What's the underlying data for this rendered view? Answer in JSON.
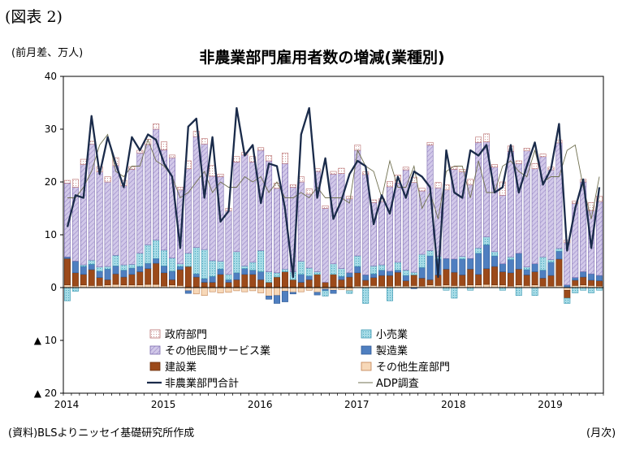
{
  "figure_label": "(図表 2)",
  "unit_label": "(前月差、万人)",
  "source_note": "(資料)BLSよりニッセイ基礎研究所作成",
  "x_unit": "(月次)",
  "colors": {
    "government": "#b86b6b",
    "retail": "#7cc6d6",
    "other_private_services": "#bdb0da",
    "manufacturing": "#4f7fc0",
    "construction": "#9c4a1a",
    "other_goods": "#f4cda6",
    "nonfarm_total": "#1a2b4a",
    "adp": "#707050"
  },
  "chart_data": {
    "type": "bar",
    "stacked": true,
    "title": "非農業部門雇用者数の増減(業種別)",
    "ylim": [
      -20,
      40
    ],
    "yticks": [
      {
        "v": 40,
        "label": "40"
      },
      {
        "v": 30,
        "label": "30"
      },
      {
        "v": 20,
        "label": "20"
      },
      {
        "v": 10,
        "label": "10"
      },
      {
        "v": 0,
        "label": "0"
      },
      {
        "v": -10,
        "label": "▲ 10"
      },
      {
        "v": -20,
        "label": "▲ 20"
      }
    ],
    "year_labels": [
      "2014",
      "2015",
      "2016",
      "2017",
      "2018",
      "2019"
    ],
    "start": "2014-01",
    "months": 67,
    "legend": [
      {
        "key": "government",
        "label": "政府部門",
        "kind": "bar"
      },
      {
        "key": "retail",
        "label": "小売業",
        "kind": "bar"
      },
      {
        "key": "other_private_services",
        "label": "その他民間サービス業",
        "kind": "bar"
      },
      {
        "key": "manufacturing",
        "label": "製造業",
        "kind": "bar"
      },
      {
        "key": "construction",
        "label": "建設業",
        "kind": "bar"
      },
      {
        "key": "other_goods",
        "label": "その他生産部門",
        "kind": "bar"
      },
      {
        "key": "nonfarm_total",
        "label": "非農業部門合計",
        "kind": "line"
      },
      {
        "key": "adp",
        "label": "ADP調査",
        "kind": "line"
      }
    ],
    "series": {
      "other_goods": [
        0.5,
        0.3,
        0.5,
        0.4,
        0.4,
        0.5,
        0.6,
        0.5,
        0.5,
        0.5,
        0.6,
        0.6,
        0.3,
        0.5,
        0.4,
        -0.6,
        -1.2,
        -1.5,
        -0.8,
        -1.0,
        -0.9,
        -0.6,
        -0.8,
        -0.6,
        -1.0,
        -1.6,
        -1.5,
        -0.7,
        -0.9,
        -0.8,
        -0.5,
        -0.9,
        -0.3,
        -0.5,
        -0.4,
        -0.6,
        0.3,
        0.4,
        0.4,
        0.3,
        0.3,
        0.4,
        0.3,
        0.4,
        0.3,
        0.5,
        0.4,
        0.5,
        0.4,
        0.4,
        0.5,
        0.5,
        0.6,
        0.5,
        0.5,
        0.3,
        0.5,
        0.4,
        0.5,
        0.3,
        0.3,
        0.4,
        -0.5,
        0.4,
        0.5,
        0.4,
        0.3
      ],
      "construction": [
        5.0,
        2.5,
        2.0,
        3.0,
        1.5,
        1.0,
        2.0,
        1.5,
        2.0,
        2.5,
        3.0,
        4.0,
        2.5,
        1.0,
        3.0,
        4.0,
        2.0,
        1.0,
        1.0,
        2.5,
        1.0,
        1.5,
        2.5,
        2.5,
        1.5,
        1.0,
        2.0,
        3.0,
        1.5,
        1.0,
        1.5,
        2.5,
        1.0,
        2.5,
        1.5,
        2.0,
        2.5,
        1.0,
        1.5,
        2.0,
        2.0,
        2.5,
        1.0,
        2.0,
        1.5,
        1.0,
        2.0,
        3.0,
        2.5,
        2.0,
        3.0,
        2.0,
        3.0,
        3.5,
        2.5,
        2.5,
        3.0,
        2.0,
        2.5,
        1.5,
        2.0,
        5.0,
        -1.5,
        1.0,
        1.5,
        1.0,
        1.0
      ],
      "manufacturing": [
        0.3,
        2.2,
        1.5,
        1.0,
        1.2,
        2.0,
        1.5,
        1.3,
        1.2,
        1.0,
        1.0,
        0.9,
        1.3,
        1.6,
        0.6,
        -0.5,
        0.6,
        0.7,
        1.1,
        1.0,
        0.5,
        1.3,
        1.1,
        0.8,
        1.5,
        -0.6,
        -1.5,
        -2.0,
        -0.3,
        1.5,
        0.7,
        -0.5,
        -0.3,
        -0.6,
        0.6,
        0.8,
        1.2,
        1.0,
        0.7,
        1.0,
        0.8,
        0.4,
        1.0,
        -0.2,
        2.0,
        4.5,
        3.0,
        2.0,
        2.5,
        3.0,
        2.0,
        4.0,
        4.5,
        2.0,
        1.5,
        2.5,
        3.0,
        1.0,
        1.5,
        1.5,
        2.5,
        1.5,
        0.5,
        0.5,
        1.0,
        1.2,
        1.0
      ],
      "retail": [
        -2.5,
        -0.7,
        0.3,
        0.8,
        0.8,
        0.5,
        2.0,
        1.0,
        0.7,
        2.5,
        3.5,
        3.5,
        3.0,
        2.5,
        0.5,
        2.5,
        5.0,
        5.5,
        3.0,
        1.5,
        1.0,
        4.0,
        0.5,
        1.5,
        4.0,
        2.0,
        0.8,
        0.5,
        1.5,
        2.5,
        1.5,
        0.5,
        -1.0,
        2.0,
        1.5,
        -0.5,
        2.0,
        -3.0,
        1.5,
        1.0,
        -2.5,
        1.5,
        1.0,
        0.5,
        2.5,
        1.0,
        0.5,
        -0.5,
        -2.0,
        0.5,
        -0.5,
        1.0,
        1.5,
        0.8,
        -0.5,
        0.5,
        -1.5,
        0.5,
        -1.5,
        2.5,
        0.5,
        0.5,
        -1.0,
        -1.0,
        -0.5,
        -1.0,
        -0.5
      ],
      "other_private_services": [
        14,
        14,
        19,
        22,
        18,
        16,
        17,
        15,
        18,
        19,
        19,
        21,
        19,
        19,
        14,
        16,
        21,
        20,
        16,
        16,
        12,
        17,
        21,
        19,
        19,
        21,
        16,
        20,
        16,
        15,
        14,
        19,
        14,
        17,
        18,
        14,
        20,
        19,
        12,
        12,
        16,
        15,
        19,
        17,
        12,
        20,
        13,
        13,
        17,
        16,
        14,
        20,
        18,
        16,
        13,
        20,
        17,
        22,
        18,
        19,
        17,
        20,
        8,
        14,
        17,
        12,
        14
      ],
      "government": [
        0.5,
        1.5,
        1.0,
        0.5,
        1.0,
        1.0,
        1.5,
        1.0,
        0.5,
        0.5,
        1.0,
        1.0,
        1.5,
        0.5,
        0.5,
        1.5,
        1.0,
        1.0,
        2.0,
        0.5,
        0.5,
        1.0,
        0.5,
        1.0,
        0.5,
        1.0,
        1.0,
        2.0,
        0.5,
        1.0,
        1.0,
        0.5,
        0.5,
        0.5,
        1.0,
        0.5,
        1.0,
        0.5,
        0.5,
        0.5,
        1.0,
        1.5,
        0.5,
        1.0,
        0.5,
        0.5,
        1.0,
        1.0,
        0.5,
        0.5,
        1.0,
        1.0,
        1.5,
        0.5,
        2.5,
        1.0,
        0.5,
        0.5,
        1.0,
        0.5,
        0.5,
        0.5,
        0.5,
        0.5,
        0.5,
        1.5,
        1.0
      ],
      "nonfarm_total": [
        11.5,
        17.5,
        17,
        32.5,
        21.5,
        28.5,
        23.5,
        19,
        28.5,
        26,
        29,
        28,
        23.5,
        21,
        7.5,
        30.5,
        32,
        17,
        28.5,
        12.5,
        14.5,
        34,
        25,
        27,
        16,
        23.5,
        23,
        15,
        2,
        29,
        34,
        17,
        24.5,
        13,
        16.5,
        21.5,
        24,
        23,
        12,
        17.5,
        14,
        21,
        17,
        22,
        21,
        19,
        2,
        26,
        18,
        17,
        26,
        25,
        27,
        18,
        19,
        27,
        18,
        23,
        27.5,
        19.5,
        22.5,
        31,
        7,
        15,
        20.5,
        7.5,
        19
      ],
      "adp": [
        17,
        17,
        19,
        22,
        27,
        29,
        22,
        21,
        23,
        23,
        28,
        24,
        23,
        21,
        17,
        18,
        20,
        22,
        18,
        20,
        19,
        19,
        21,
        20,
        21,
        18,
        20,
        17,
        17,
        18,
        17,
        19,
        17,
        17,
        17,
        16,
        26,
        23,
        22,
        17,
        24,
        19,
        19,
        23,
        15,
        18,
        13,
        22,
        23,
        23,
        17,
        24,
        18,
        18,
        23,
        24,
        22,
        21,
        26,
        20,
        21,
        21,
        26,
        27,
        19,
        13,
        21
      ]
    }
  }
}
